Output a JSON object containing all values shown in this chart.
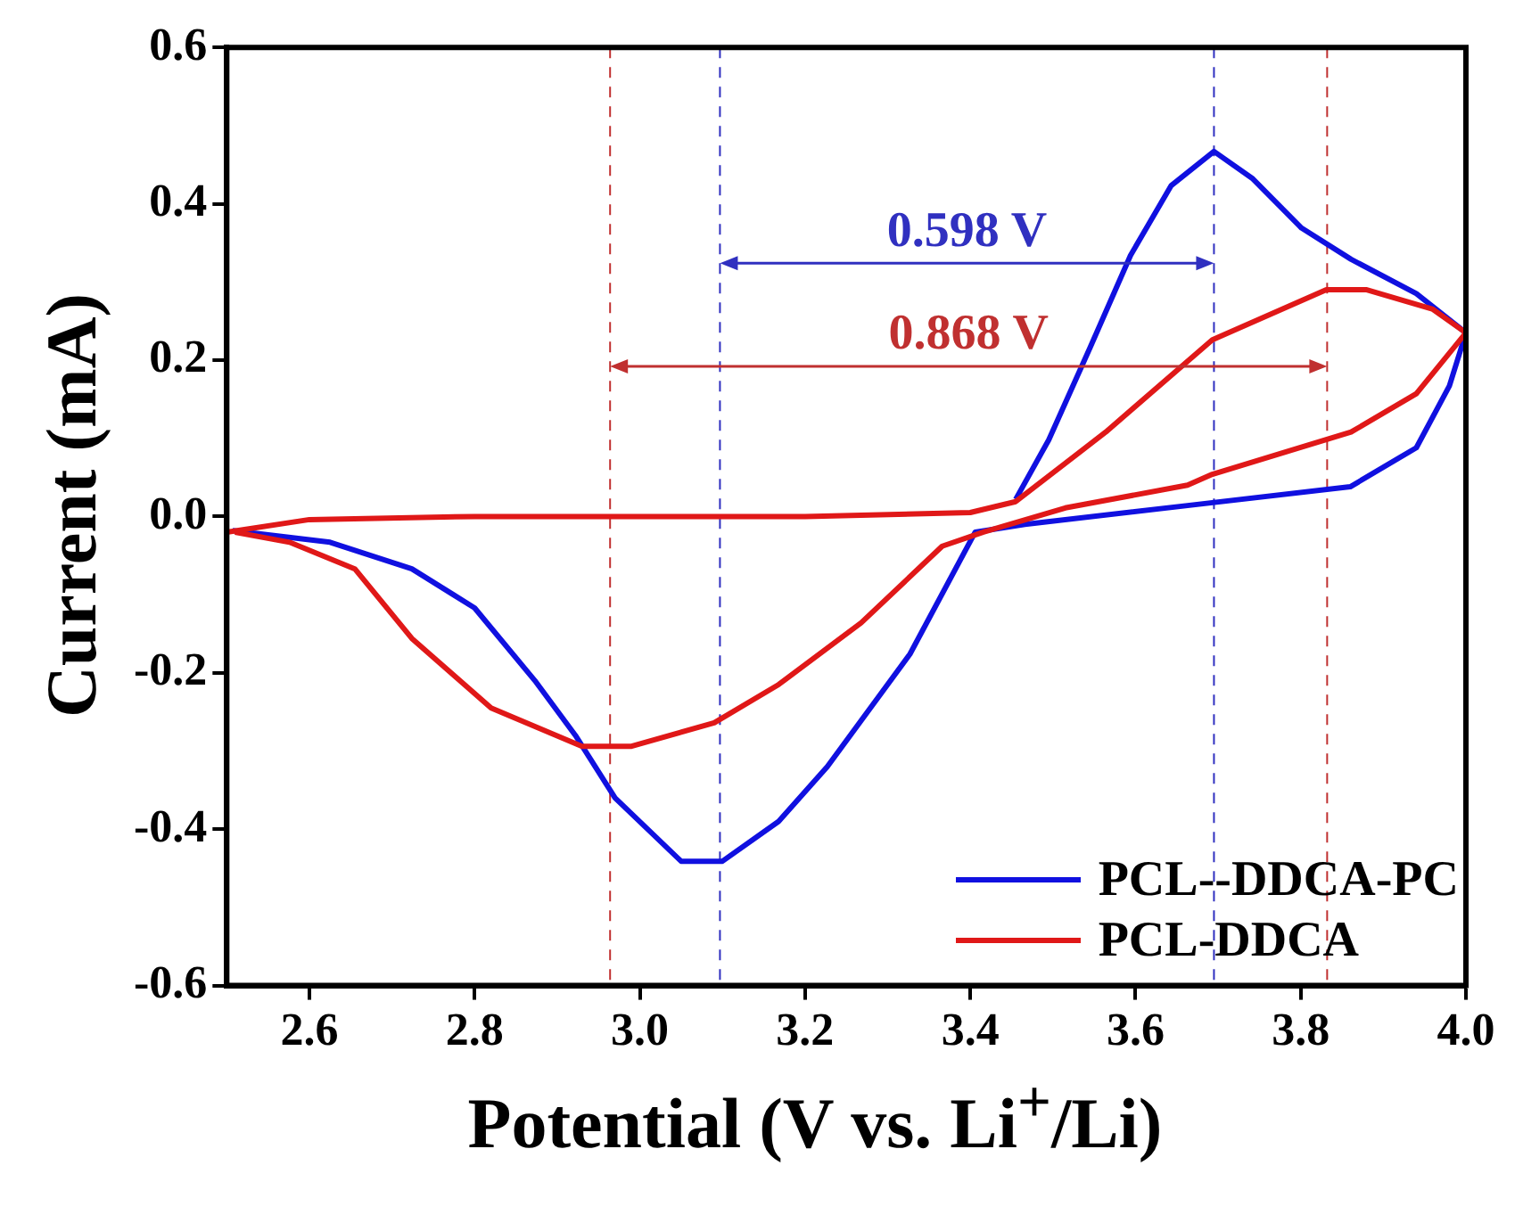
{
  "chart_data": {
    "type": "line",
    "xlabel": "Potential (V vs. Li$^{+}$/Li)",
    "ylabel": "Current (mA)",
    "xlim": [
      2.5,
      4.0
    ],
    "xticks": [
      2.6,
      2.8,
      {
        "value": 3.0,
        "label": "3.0"
      },
      3.2,
      3.4,
      3.6,
      3.8,
      {
        "value": 4.0,
        "label": "4.0"
      }
    ],
    "ylim": [
      -0.6,
      0.6
    ],
    "yticks": [
      -0.6,
      -0.4,
      -0.2,
      {
        "value": 0,
        "label": "0.0"
      },
      0.2,
      0.4,
      0.6
    ],
    "grid": false,
    "legend": "bottom right",
    "marker": "none",
    "line_style": "solid",
    "series": [
      {
        "name": "PCL--DDCA-PC",
        "color": "#1010e0",
        "x": [
          3.455,
          3.495,
          3.545,
          3.594,
          3.643,
          3.695,
          3.742,
          3.801,
          3.861,
          3.94,
          4.0,
          3.98,
          3.94,
          3.86,
          3.663,
          3.466,
          3.406,
          3.327,
          3.227,
          3.168,
          3.1,
          3.05,
          2.97,
          2.922,
          2.873,
          2.8,
          2.724,
          2.625,
          2.507
        ],
        "values": [
          0.022,
          0.098,
          0.216,
          0.334,
          0.423,
          0.467,
          0.432,
          0.369,
          0.329,
          0.285,
          0.235,
          0.167,
          0.088,
          0.038,
          0.014,
          -0.01,
          -0.02,
          -0.176,
          -0.32,
          -0.39,
          -0.441,
          -0.441,
          -0.36,
          -0.28,
          -0.21,
          -0.117,
          -0.067,
          -0.033,
          -0.018
        ]
      },
      {
        "name": "PCL-DDCA",
        "color": "#e01818",
        "x": [
          2.5,
          2.6,
          2.8,
          3.0,
          3.2,
          3.4,
          3.455,
          3.564,
          3.693,
          3.831,
          3.88,
          3.96,
          4.0,
          3.94,
          3.861,
          3.693,
          3.663,
          3.515,
          3.416,
          3.366,
          3.268,
          3.168,
          3.09,
          2.99,
          2.93,
          2.82,
          2.724,
          2.655,
          2.576,
          2.51
        ],
        "values": [
          -0.02,
          -0.004,
          0,
          0,
          0,
          0.005,
          0.019,
          0.108,
          0.226,
          0.29,
          0.29,
          0.265,
          0.235,
          0.157,
          0.108,
          0.054,
          0.04,
          0.011,
          -0.02,
          -0.038,
          -0.136,
          -0.215,
          -0.264,
          -0.294,
          -0.294,
          -0.245,
          -0.156,
          -0.067,
          -0.033,
          -0.02
        ]
      }
    ],
    "ref_lines": [
      {
        "axis": "x",
        "value": 3.097,
        "color": "#3030c0",
        "line_style": "dashed"
      },
      {
        "axis": "x",
        "value": 3.695,
        "color": "#3030c0",
        "line_style": "dashed"
      },
      {
        "axis": "x",
        "value": 2.964,
        "color": "#c03030",
        "line_style": "dashed"
      },
      {
        "axis": "x",
        "value": 3.832,
        "color": "#c03030",
        "line_style": "dashed"
      }
    ],
    "annotations": [
      "0.598 V",
      "0.868 V"
    ]
  }
}
